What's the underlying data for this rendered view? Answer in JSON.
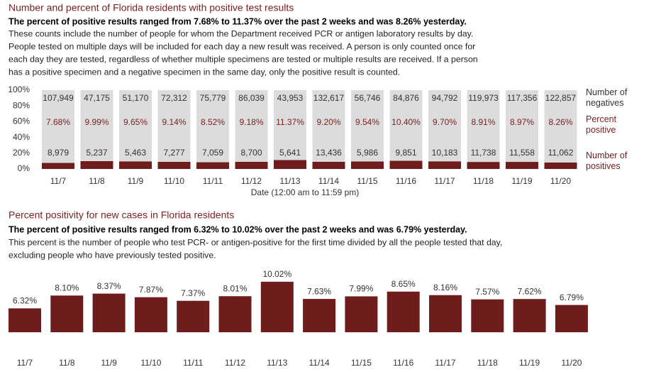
{
  "chart_data": [
    {
      "type": "stacked_bar",
      "title": "Number and percent of Florida residents with positive test results",
      "subtitle": "The percent of positive results ranged from 7.68% to 11.37% over the past 2 weeks and was 8.26% yesterday.",
      "description": [
        "These counts include the number of people for whom the Department received PCR or antigen laboratory results by day.",
        "People tested on multiple days will be included for each day a new result was received. A person is only counted once for",
        "each day they are tested, regardless of whether multiple specimens are tested or multiple results are received. If a person",
        "has a positive specimen and a negative specimen in the same day, only the positive result is counted."
      ],
      "categories": [
        "11/7",
        "11/8",
        "11/9",
        "11/10",
        "11/11",
        "11/12",
        "11/13",
        "11/14",
        "11/15",
        "11/16",
        "11/17",
        "11/18",
        "11/19",
        "11/20"
      ],
      "xlabel": "Date (12:00 am to 11:59 pm)",
      "ylim": [
        0,
        100
      ],
      "yticks": [
        {
          "value": 0,
          "label": "0%"
        },
        {
          "value": 20,
          "label": "20%"
        },
        {
          "value": 40,
          "label": "40%"
        },
        {
          "value": 60,
          "label": "60%"
        },
        {
          "value": 80,
          "label": "80%"
        },
        {
          "value": 100,
          "label": "100%"
        }
      ],
      "series": [
        {
          "name": "Number of positives",
          "color": "#6e1c1c",
          "values": [
            7.68,
            9.99,
            9.65,
            9.14,
            8.52,
            9.18,
            11.37,
            9.2,
            9.54,
            10.4,
            9.7,
            8.91,
            8.97,
            8.26
          ],
          "value_labels": [
            "7.68%",
            "9.99%",
            "9.65%",
            "9.14%",
            "8.52%",
            "9.18%",
            "11.37%",
            "9.20%",
            "9.54%",
            "10.40%",
            "9.70%",
            "8.91%",
            "8.97%",
            "8.26%"
          ]
        },
        {
          "name": "Number of negatives",
          "color": "#dcdcdc",
          "values": [
            92.32,
            90.01,
            90.35,
            90.86,
            91.48,
            90.82,
            88.63,
            90.8,
            90.46,
            89.6,
            90.3,
            91.09,
            91.03,
            91.74
          ]
        }
      ],
      "value_label_title": "Percent positive",
      "negative_counts": [
        "107,949",
        "47,175",
        "51,170",
        "72,312",
        "75,779",
        "86,039",
        "43,953",
        "132,617",
        "56,746",
        "84,876",
        "94,792",
        "119,973",
        "117,356",
        "122,857"
      ],
      "positive_counts": [
        "8,979",
        "5,237",
        "5,463",
        "7,277",
        "7,059",
        "8,700",
        "5,641",
        "13,436",
        "5,986",
        "9,851",
        "10,183",
        "11,738",
        "11,558",
        "11,062"
      ]
    },
    {
      "type": "bar",
      "title": "Percent positivity for new cases in Florida residents",
      "subtitle": "The percent of positive results ranged from 6.32% to 10.02% over the past 2 weeks and was 6.79% yesterday.",
      "description": [
        "This percent is the number of people who test PCR- or antigen-positive for the first time divided by all the people tested that day,",
        "excluding people who have previously tested positive."
      ],
      "categories": [
        "11/7",
        "11/8",
        "11/9",
        "11/10",
        "11/11",
        "11/12",
        "11/13",
        "11/14",
        "11/15",
        "11/16",
        "11/17",
        "11/18",
        "11/19",
        "11/20"
      ],
      "ylim": [
        3,
        10.5
      ],
      "color": "#6e1c1c",
      "values": [
        6.32,
        8.1,
        8.37,
        7.87,
        7.37,
        8.01,
        10.02,
        7.63,
        7.99,
        8.65,
        8.16,
        7.57,
        7.62,
        6.79
      ],
      "value_labels": [
        "6.32%",
        "8.10%",
        "8.37%",
        "7.87%",
        "7.37%",
        "8.01%",
        "10.02%",
        "7.63%",
        "7.99%",
        "8.65%",
        "8.16%",
        "7.57%",
        "7.62%",
        "6.79%"
      ]
    }
  ]
}
